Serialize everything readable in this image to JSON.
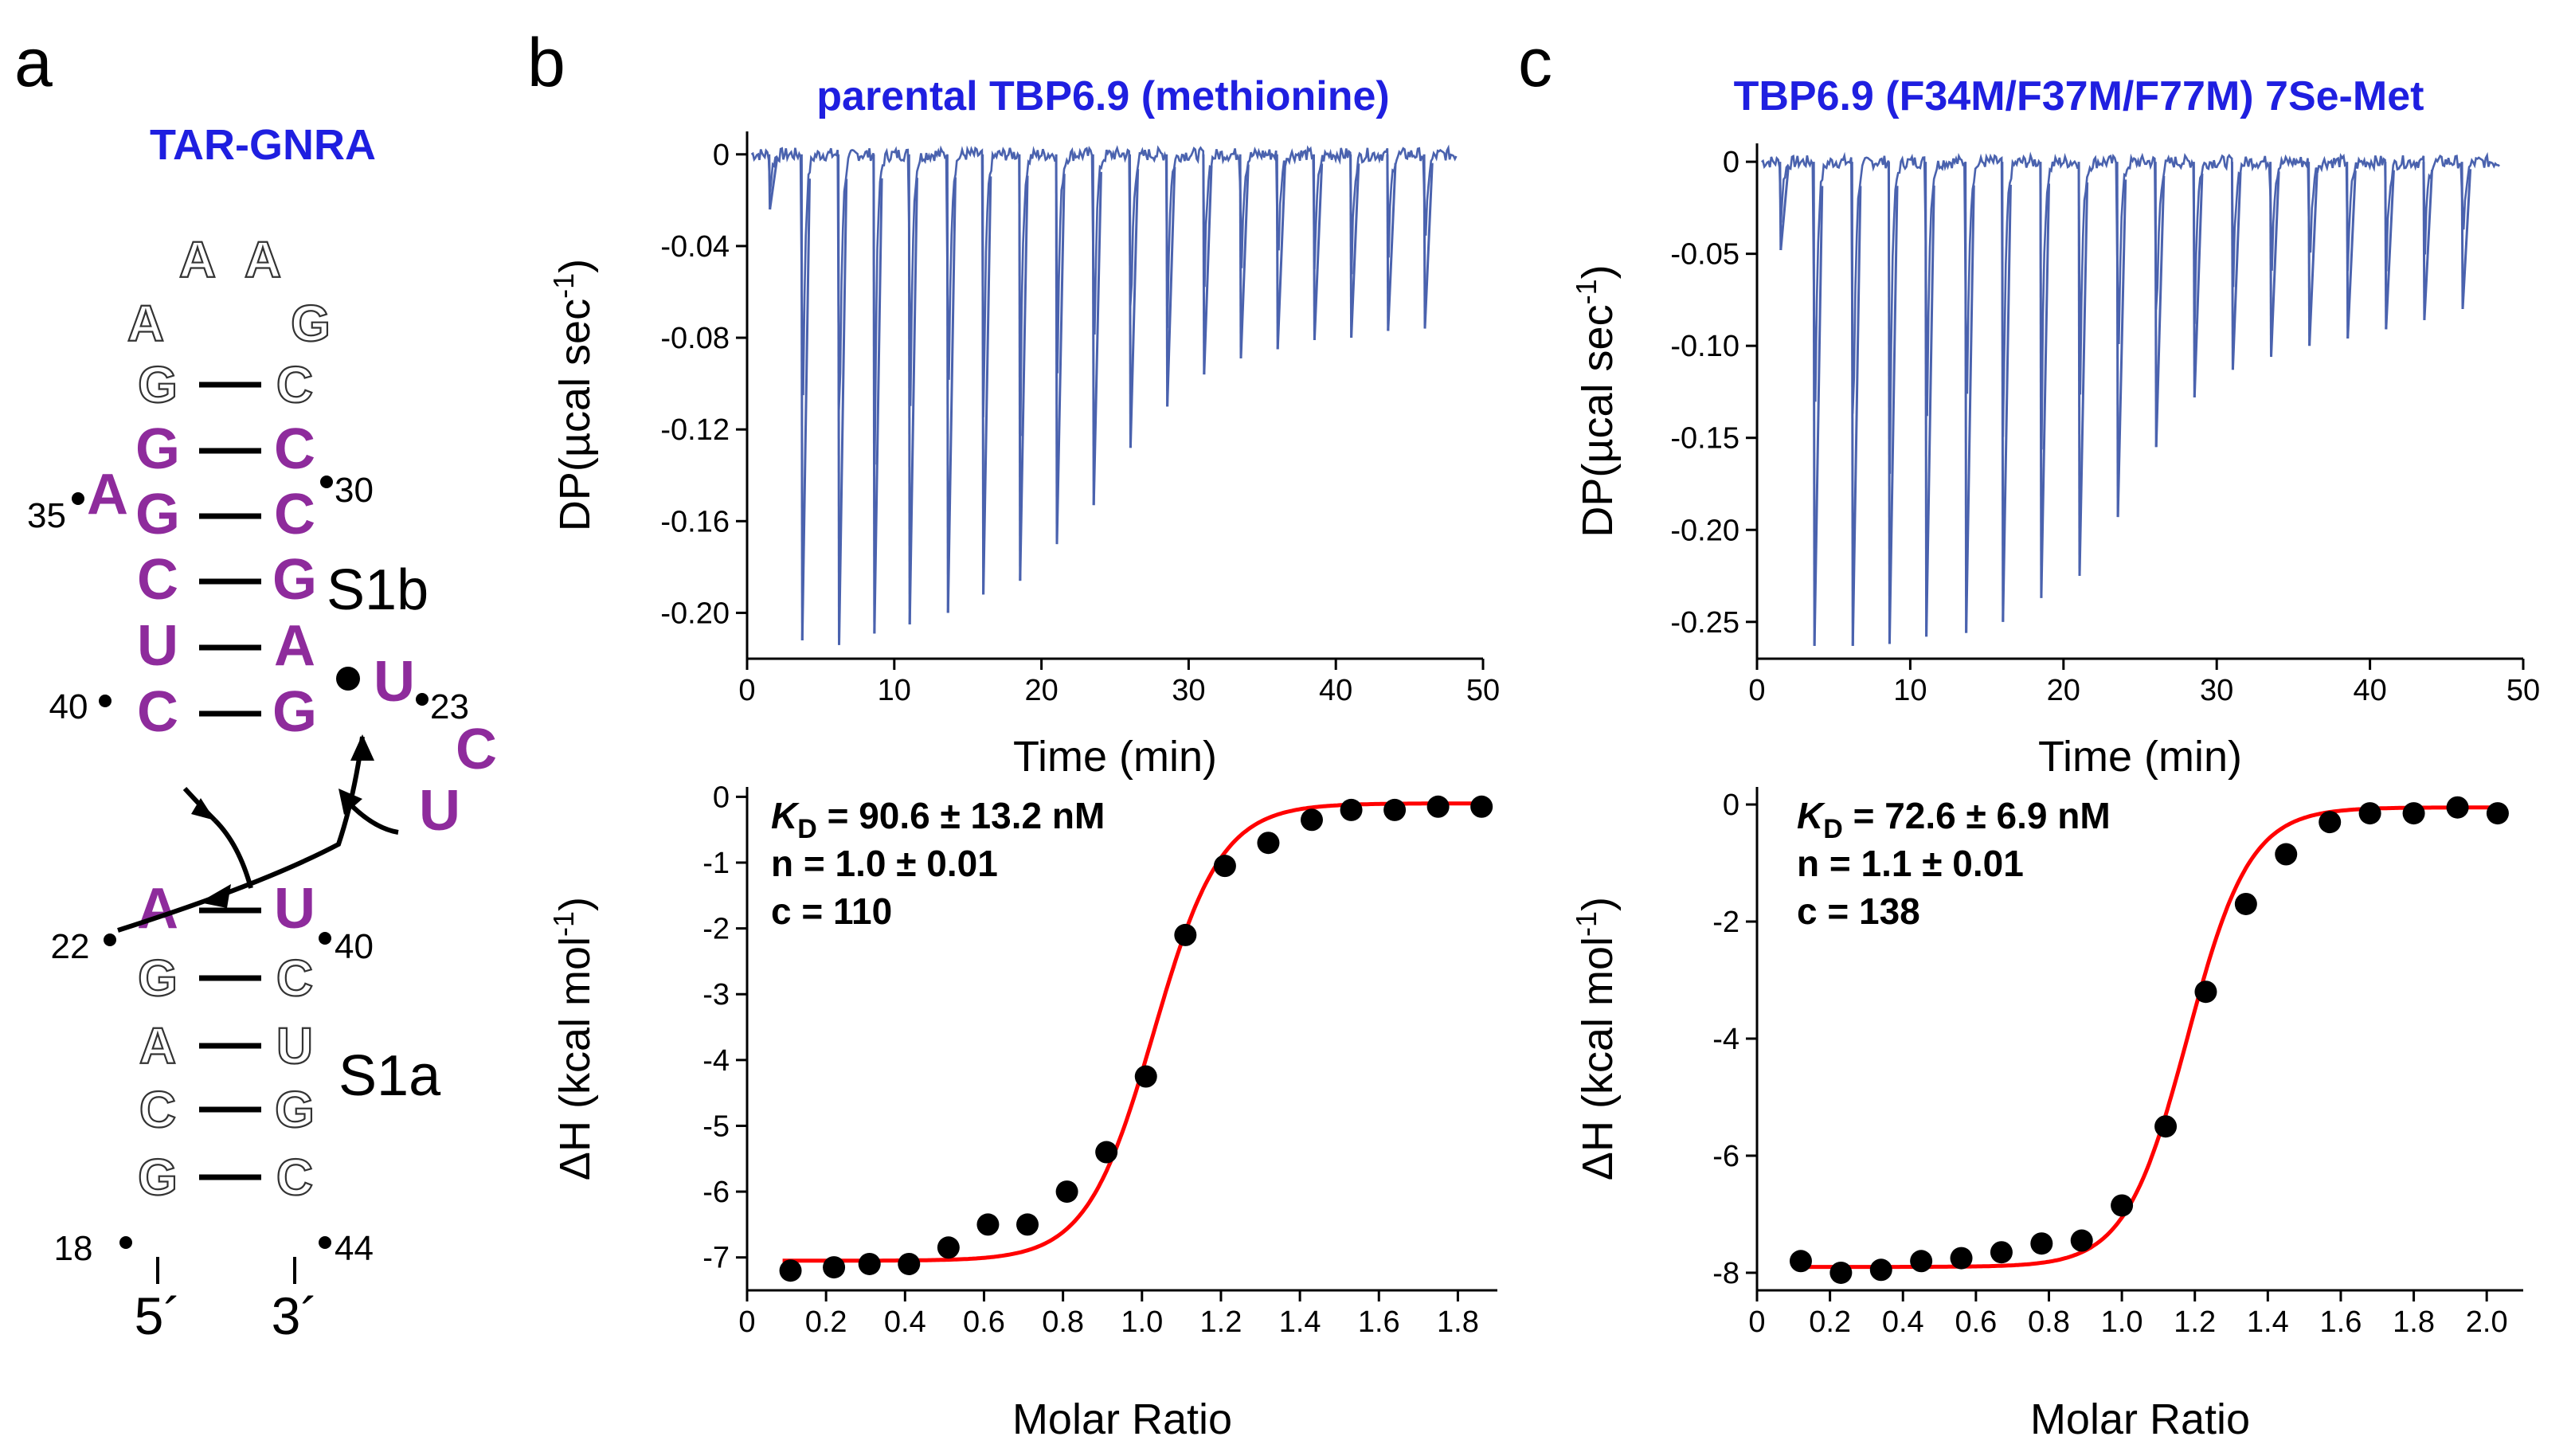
{
  "colors": {
    "title_blue": "#1f1fe0",
    "rna_purple": "#8e2b9c",
    "trace_blue": "#4a62ae",
    "fit_red": "#ff0000",
    "point_black": "#000000"
  },
  "panels": {
    "a": {
      "letter": "a",
      "title": "TAR-GNRA",
      "loop": [
        "A",
        "A",
        "A",
        "G"
      ],
      "pairs": [
        {
          "left": "G",
          "right": "C",
          "style": "open"
        },
        {
          "left": "G",
          "right": "C",
          "style": "colored"
        },
        {
          "left": "G",
          "right": "C",
          "style": "colored"
        },
        {
          "left": "C",
          "right": "G",
          "style": "colored"
        },
        {
          "left": "U",
          "right": "A",
          "style": "colored"
        },
        {
          "left": "C",
          "right": "G",
          "style": "colored"
        },
        {
          "left": "A",
          "right": "U",
          "style": "colored"
        },
        {
          "left": "G",
          "right": "C",
          "style": "open"
        },
        {
          "left": "A",
          "right": "U",
          "style": "open"
        },
        {
          "left": "C",
          "right": "G",
          "style": "open"
        },
        {
          "left": "G",
          "right": "C",
          "style": "open"
        }
      ],
      "bulge_35": "A",
      "bulge_23": [
        "U",
        "C",
        "U"
      ],
      "stem_labels": {
        "upper": "S1b",
        "lower": "S1a"
      },
      "numbers": {
        "n35": "35",
        "n30": "30",
        "n40_left": "40",
        "n23": "23",
        "n22": "22",
        "n40_right": "40",
        "n18": "18",
        "n44": "44"
      },
      "ends": {
        "five": "5´",
        "three": "3´"
      }
    },
    "b": {
      "letter": "b",
      "title": "parental TBP6.9 (methionine)",
      "kd_prefix": "K",
      "kd_sub": "D",
      "kd_value": " = 90.6 ± 13.2 nM",
      "n_text": "n = 1.0 ± 0.01",
      "c_text": "c = 110"
    },
    "c": {
      "letter": "c",
      "title": "TBP6.9 (F34M/F37M/F77M) 7Se-Met",
      "kd_prefix": "K",
      "kd_sub": "D",
      "kd_value": " = 72.6 ± 6.9 nM",
      "n_text": "n = 1.1 ± 0.01",
      "c_text": "c = 138"
    }
  },
  "chart_data": [
    {
      "id": "b-top",
      "type": "line",
      "title": "parental TBP6.9 (methionine)",
      "xlabel": "Time (min)",
      "ylabel_main": "DP(µcal sec",
      "ylabel_sup": "-1",
      "ylabel_end": ")",
      "xlim": [
        0,
        50
      ],
      "ylim": [
        -0.22,
        0.01
      ],
      "xticks": [
        0,
        10,
        20,
        30,
        40,
        50
      ],
      "xtick_labels": [
        "0",
        "10",
        "20",
        "30",
        "40",
        "50"
      ],
      "yticks": [
        0,
        -0.04,
        -0.08,
        -0.12,
        -0.16,
        -0.2
      ],
      "ytick_labels": [
        "0",
        "-0.04",
        "-0.08",
        "-0.12",
        "-0.16",
        "-0.20"
      ],
      "trace_range": [
        0.3,
        48.2
      ],
      "injection_times": [
        1.5,
        3.7,
        6.2,
        8.6,
        11.0,
        13.6,
        16.0,
        18.5,
        21.0,
        23.5,
        26.0,
        28.5,
        31.0,
        33.5,
        36.0,
        38.5,
        41.0,
        43.5,
        46.0
      ],
      "injection_peaks": [
        -0.024,
        -0.212,
        -0.214,
        -0.209,
        -0.205,
        -0.2,
        -0.192,
        -0.186,
        -0.17,
        -0.153,
        -0.128,
        -0.11,
        -0.096,
        -0.089,
        -0.085,
        -0.081,
        -0.08,
        -0.077,
        -0.076
      ]
    },
    {
      "id": "b-bottom",
      "type": "scatter",
      "xlabel": "Molar Ratio",
      "ylabel_main": "ΔH (kcal mol",
      "ylabel_sup": "-1",
      "ylabel_end": ")",
      "xlim": [
        0,
        1.9
      ],
      "ylim": [
        -7.5,
        0.15
      ],
      "xticks": [
        0,
        0.2,
        0.4,
        0.6,
        0.8,
        1.0,
        1.2,
        1.4,
        1.6,
        1.8
      ],
      "xtick_labels": [
        "0",
        "0.2",
        "0.4",
        "0.6",
        "0.8",
        "1.0",
        "1.2",
        "1.4",
        "1.6",
        "1.8"
      ],
      "yticks": [
        0,
        -1,
        -2,
        -3,
        -4,
        -5,
        -6,
        -7
      ],
      "ytick_labels": [
        "0",
        "-1",
        "-2",
        "-3",
        "-4",
        "-5",
        "-6",
        "-7"
      ],
      "x": [
        0.11,
        0.22,
        0.31,
        0.41,
        0.51,
        0.61,
        0.71,
        0.81,
        0.91,
        1.01,
        1.11,
        1.21,
        1.32,
        1.43,
        1.53,
        1.64,
        1.75,
        1.86
      ],
      "y": [
        -7.2,
        -7.15,
        -7.1,
        -7.1,
        -6.85,
        -6.5,
        -6.5,
        -6.0,
        -5.4,
        -4.25,
        -2.1,
        -1.05,
        -0.7,
        -0.35,
        -0.2,
        -0.2,
        -0.15,
        -0.15
      ],
      "fit": {
        "dH_min": -7.05,
        "dH_max": -0.1,
        "x_mid": 1.03,
        "width": 0.085
      }
    },
    {
      "id": "c-top",
      "type": "line",
      "title": "TBP6.9 (F34M/F37M/F77M) 7Se-Met",
      "xlabel": "Time (min)",
      "ylabel_main": "DP(µcal sec",
      "ylabel_sup": "-1",
      "ylabel_end": ")",
      "xlim": [
        0,
        50
      ],
      "ylim": [
        -0.27,
        0.01
      ],
      "xticks": [
        0,
        10,
        20,
        30,
        40,
        50
      ],
      "xtick_labels": [
        "0",
        "10",
        "20",
        "30",
        "40",
        "50"
      ],
      "yticks": [
        0,
        -0.05,
        -0.1,
        -0.15,
        -0.2,
        -0.25
      ],
      "ytick_labels": [
        "0",
        "-0.05",
        "-0.10",
        "-0.15",
        "-0.20",
        "-0.25"
      ],
      "trace_range": [
        0.3,
        48.5
      ],
      "injection_times": [
        1.5,
        3.7,
        6.2,
        8.6,
        11.0,
        13.6,
        16.0,
        18.5,
        21.0,
        23.5,
        26.0,
        28.5,
        31.0,
        33.5,
        36.0,
        38.5,
        41.0,
        43.5,
        46.0
      ],
      "injection_peaks": [
        -0.048,
        -0.263,
        -0.263,
        -0.262,
        -0.258,
        -0.256,
        -0.25,
        -0.237,
        -0.225,
        -0.193,
        -0.155,
        -0.128,
        -0.113,
        -0.106,
        -0.1,
        -0.096,
        -0.091,
        -0.086,
        -0.08
      ]
    },
    {
      "id": "c-bottom",
      "type": "scatter",
      "xlabel": "Molar Ratio",
      "ylabel_main": "ΔH (kcal mol",
      "ylabel_sup": "-1",
      "ylabel_end": ")",
      "xlim": [
        0,
        2.1
      ],
      "ylim": [
        -8.3,
        0.3
      ],
      "xticks": [
        0,
        0.2,
        0.4,
        0.6,
        0.8,
        1.0,
        1.2,
        1.4,
        1.6,
        1.8,
        2.0
      ],
      "xtick_labels": [
        "0",
        "0.2",
        "0.4",
        "0.6",
        "0.8",
        "1.0",
        "1.2",
        "1.4",
        "1.6",
        "1.8",
        "2.0"
      ],
      "yticks": [
        0,
        -2,
        -4,
        -6,
        -8
      ],
      "ytick_labels": [
        "0",
        "-2",
        "-4",
        "-6",
        "-8"
      ],
      "x": [
        0.12,
        0.23,
        0.34,
        0.45,
        0.56,
        0.67,
        0.78,
        0.89,
        1.0,
        1.12,
        1.23,
        1.34,
        1.45,
        1.57,
        1.68,
        1.8,
        1.92,
        2.03
      ],
      "y": [
        -7.8,
        -8.0,
        -7.95,
        -7.8,
        -7.75,
        -7.65,
        -7.5,
        -7.45,
        -6.85,
        -5.5,
        -3.2,
        -1.7,
        -0.85,
        -0.3,
        -0.15,
        -0.15,
        -0.05,
        -0.15
      ],
      "fit": {
        "dH_min": -7.9,
        "dH_max": -0.05,
        "x_mid": 1.18,
        "width": 0.085
      }
    }
  ]
}
